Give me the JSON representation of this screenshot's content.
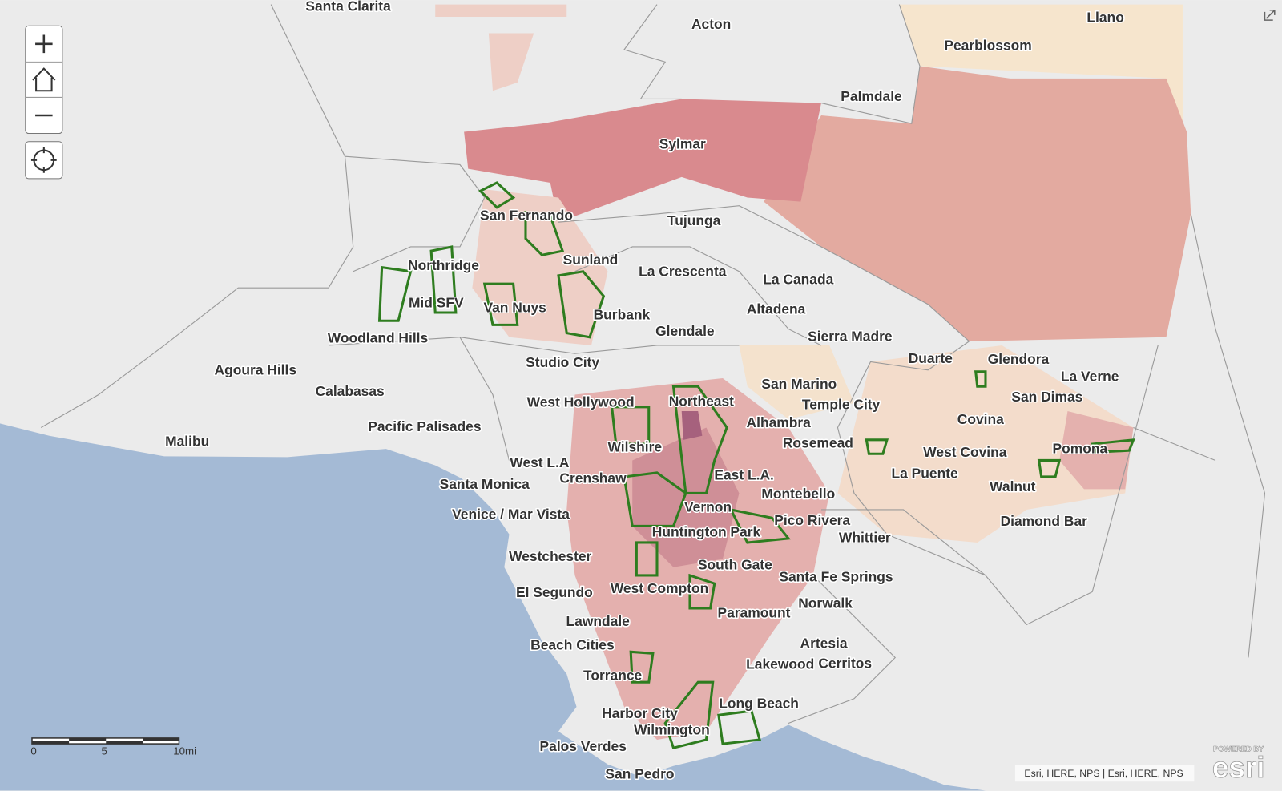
{
  "map": {
    "places": [
      "Santa Clarita",
      "Acton",
      "Llano",
      "Pearblossom",
      "Palmdale",
      "Sylmar",
      "Tujunga",
      "San Fernando",
      "Northridge",
      "Sunland",
      "La Crescenta",
      "La Canada",
      "Mid SFV",
      "Van Nuys",
      "Burbank",
      "Altadena",
      "Glendale",
      "Sierra Madre",
      "Woodland Hills",
      "Studio City",
      "Duarte",
      "Glendora",
      "Agoura Hills",
      "Calabasas",
      "San Marino",
      "La Verne",
      "West Hollywood",
      "Northeast",
      "Temple City",
      "San Dimas",
      "Covina",
      "Pacific Palisades",
      "Alhambra",
      "Malibu",
      "Wilshire",
      "Rosemead",
      "Pomona",
      "West Covina",
      "West L.A",
      "Crenshaw",
      "East L.A.",
      "La Puente",
      "Santa Monica",
      "Walnut",
      "Montebello",
      "Vernon",
      "Venice / Mar Vista",
      "Pico Rivera",
      "Diamond Bar",
      "Huntington Park",
      "Whittier",
      "Westchester",
      "South Gate",
      "Santa Fe Springs",
      "El Segundo",
      "West Compton",
      "Norwalk",
      "Paramount",
      "Lawndale",
      "Artesia",
      "Beach Cities",
      "Lakewood",
      "Cerritos",
      "Torrance",
      "Long Beach",
      "Harbor City",
      "Wilmington",
      "Palos Verdes",
      "San Pedro"
    ],
    "scale_bar": {
      "labels": [
        "0",
        "5",
        "10mi"
      ]
    },
    "attribution": "Esri, HERE, NPS | Esri, HERE, NPS",
    "logo": {
      "caption": "POWERED BY",
      "name": "esri"
    }
  }
}
